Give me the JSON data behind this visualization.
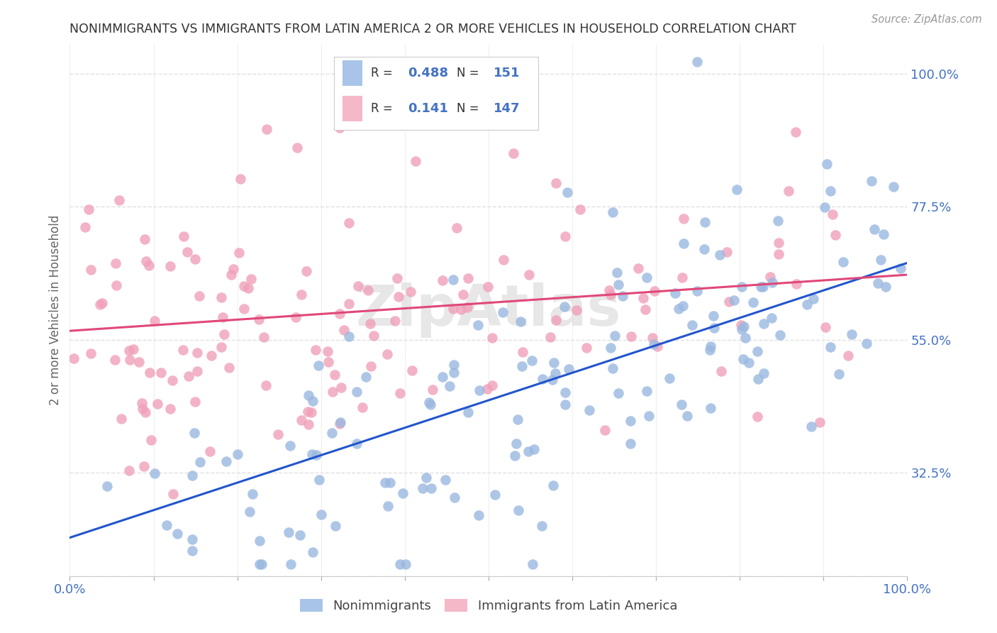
{
  "title": "NONIMMIGRANTS VS IMMIGRANTS FROM LATIN AMERICA 2 OR MORE VEHICLES IN HOUSEHOLD CORRELATION CHART",
  "source": "Source: ZipAtlas.com",
  "ylabel": "2 or more Vehicles in Household",
  "y_tick_labels": [
    "",
    "32.5%",
    "55.0%",
    "77.5%",
    "100.0%"
  ],
  "y_tick_values": [
    0.15,
    0.325,
    0.55,
    0.775,
    1.0
  ],
  "x_tick_positions": [
    0.0,
    0.1,
    0.2,
    0.3,
    0.4,
    0.5,
    0.6,
    0.7,
    0.8,
    0.9,
    1.0
  ],
  "x_range": [
    0.0,
    1.0
  ],
  "y_range": [
    0.15,
    1.05
  ],
  "blue_R": 0.488,
  "blue_N": 151,
  "pink_R": 0.141,
  "pink_N": 147,
  "blue_legend_color": "#a8c4e8",
  "pink_legend_color": "#f4b8c8",
  "blue_scatter_color": "#9ab8e0",
  "pink_scatter_color": "#f0a0b8",
  "blue_line_color": "#2255cc",
  "pink_line_color": "#e04878",
  "title_color": "#333333",
  "axis_tick_color": "#4472c4",
  "legend_text_color": "#333333",
  "legend_value_color": "#4472c4",
  "grid_color": "#e0e0e0",
  "watermark_color": "#d8d8d8",
  "background_color": "#ffffff",
  "blue_trend_start_x": 0.0,
  "blue_trend_start_y": 0.215,
  "blue_trend_end_x": 1.0,
  "blue_trend_end_y": 0.68,
  "pink_trend_start_x": 0.0,
  "pink_trend_start_y": 0.565,
  "pink_trend_end_x": 1.0,
  "pink_trend_end_y": 0.66,
  "seed": 12345
}
